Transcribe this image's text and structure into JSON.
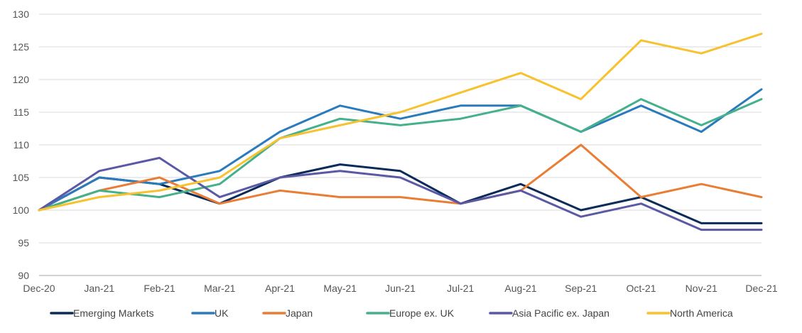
{
  "chart_data": {
    "type": "line",
    "title": "",
    "xlabel": "",
    "ylabel": "",
    "ylim": [
      90,
      130
    ],
    "y_ticks": [
      90,
      95,
      100,
      105,
      110,
      115,
      120,
      125,
      130
    ],
    "x_tick_labels": [
      "Dec-20",
      "Jan-21",
      "Feb-21",
      "Mar-21",
      "Apr-21",
      "May-21",
      "Jun-21",
      "Jul-21",
      "Aug-21",
      "Sep-21",
      "Oct-21",
      "Nov-21",
      "Dec-21"
    ],
    "grid": "horizontal",
    "legend_position": "bottom",
    "x": [
      "Dec-20",
      "Jan-21",
      "Feb-21",
      "Mar-21",
      "Apr-21",
      "May-21",
      "Jun-21",
      "Jul-21",
      "Aug-21",
      "Sep-21",
      "Oct-21",
      "Nov-21",
      "Dec-21"
    ],
    "series": [
      {
        "name": "Emerging Markets",
        "color": "#0b2c5a",
        "values": [
          100,
          105,
          104,
          101,
          105,
          107,
          106,
          101,
          104,
          100,
          102,
          98,
          98
        ]
      },
      {
        "name": "UK",
        "color": "#2a7bbd",
        "values": [
          100,
          105,
          104,
          106,
          112,
          116,
          114,
          116,
          116,
          112,
          116,
          112,
          118.5
        ]
      },
      {
        "name": "Japan",
        "color": "#ea7d35",
        "values": [
          100,
          103,
          105,
          101,
          103,
          102,
          102,
          101,
          103,
          110,
          102,
          104,
          102
        ]
      },
      {
        "name": "Europe ex. UK",
        "color": "#45b08c",
        "values": [
          100,
          103,
          102,
          104,
          111,
          114,
          113,
          114,
          116,
          112,
          117,
          113,
          117
        ]
      },
      {
        "name": "Asia Pacific ex. Japan",
        "color": "#5b59a6",
        "values": [
          100,
          106,
          108,
          102,
          105,
          106,
          105,
          101,
          103,
          99,
          101,
          97,
          97
        ]
      },
      {
        "name": "North America",
        "color": "#f7c22e",
        "values": [
          100,
          102,
          103,
          105,
          111,
          113,
          115,
          118,
          121,
          117,
          126,
          124,
          127
        ]
      }
    ]
  }
}
